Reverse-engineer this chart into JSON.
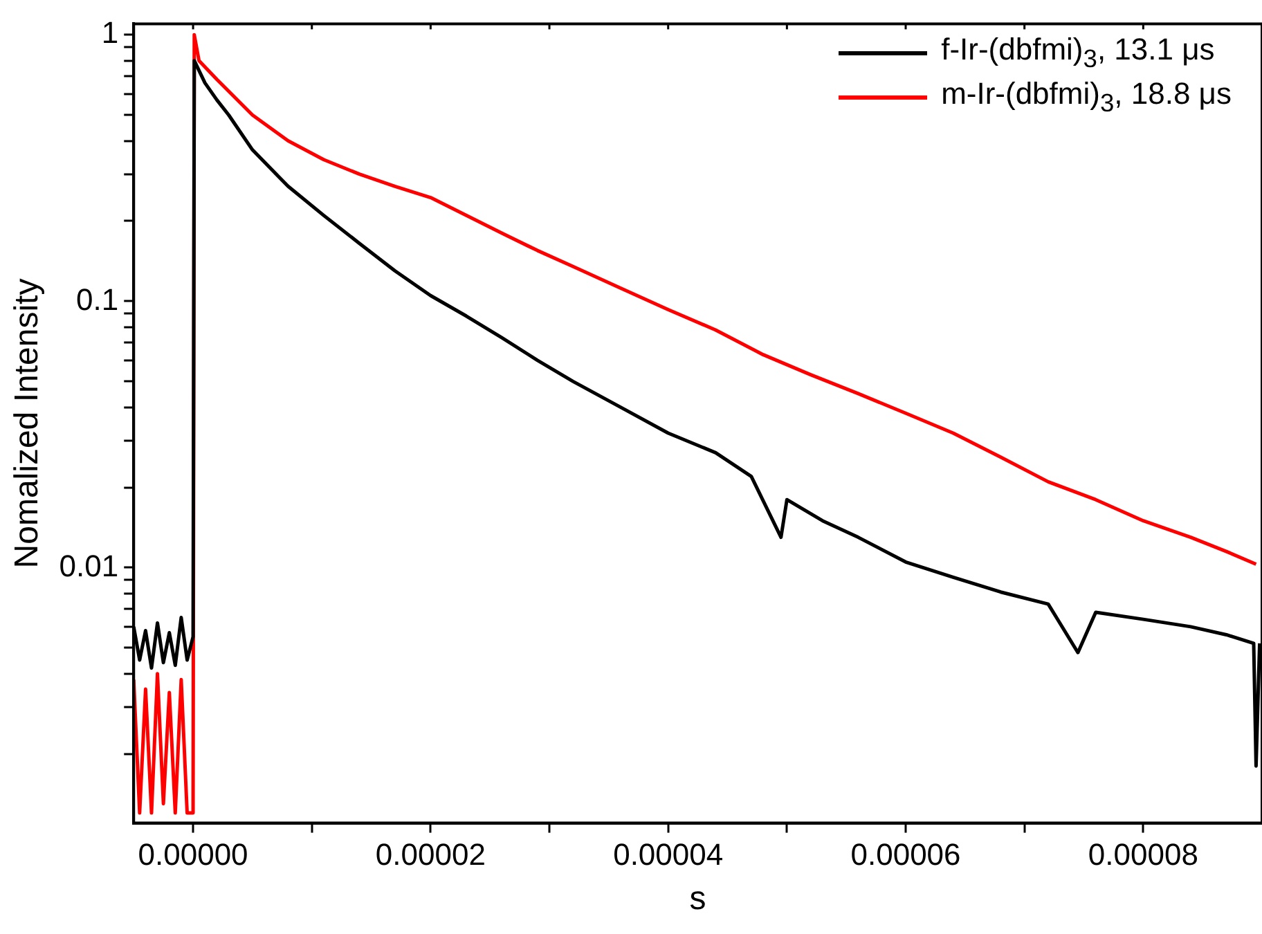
{
  "chart_data": {
    "type": "line",
    "xlabel": "s",
    "ylabel": "Nomalized Intensity",
    "log": "y",
    "marker": "none",
    "line_style": "solid",
    "grid": false,
    "legend": "top right",
    "xlim": [
      -5e-06,
      9e-05
    ],
    "ylim": [
      0.0011,
      1.1
    ],
    "xticks": [
      {
        "value": 0,
        "label": "0.00000"
      },
      {
        "value": 1e-05,
        "label": null
      },
      {
        "value": 2e-05,
        "label": "0.00002"
      },
      {
        "value": 3e-05,
        "label": null
      },
      {
        "value": 4e-05,
        "label": "0.00004"
      },
      {
        "value": 5e-05,
        "label": null
      },
      {
        "value": 6e-05,
        "label": "0.00006"
      },
      {
        "value": 7e-05,
        "label": null
      },
      {
        "value": 8e-05,
        "label": "0.00008"
      }
    ],
    "yticks": [
      {
        "value": 0.002,
        "label": null
      },
      {
        "value": 0.003,
        "label": null
      },
      {
        "value": 0.004,
        "label": null
      },
      {
        "value": 0.005,
        "label": null
      },
      {
        "value": 0.006,
        "label": null
      },
      {
        "value": 0.007,
        "label": null
      },
      {
        "value": 0.008,
        "label": null
      },
      {
        "value": 0.009,
        "label": null
      },
      0.01,
      {
        "value": 0.02,
        "label": null
      },
      {
        "value": 0.03,
        "label": null
      },
      {
        "value": 0.04,
        "label": null
      },
      {
        "value": 0.05,
        "label": null
      },
      {
        "value": 0.06,
        "label": null
      },
      {
        "value": 0.07,
        "label": null
      },
      {
        "value": 0.08,
        "label": null
      },
      {
        "value": 0.09,
        "label": null
      },
      0.1,
      {
        "value": 0.2,
        "label": null
      },
      {
        "value": 0.3,
        "label": null
      },
      {
        "value": 0.4,
        "label": null
      },
      {
        "value": 0.5,
        "label": null
      },
      {
        "value": 0.6,
        "label": null
      },
      {
        "value": 0.7,
        "label": null
      },
      {
        "value": 0.8,
        "label": null
      },
      {
        "value": 0.9,
        "label": null
      },
      1
    ],
    "series": [
      {
        "name": "f-Ir-(dbfmi)$_{3}$, 13.1 μs",
        "color": "#000000",
        "x": [
          -5e-06,
          -4.5e-06,
          -4e-06,
          -3.5e-06,
          -3e-06,
          -2.5e-06,
          -2e-06,
          -1.5e-06,
          -1e-06,
          -5e-07,
          0,
          1e-07,
          1e-06,
          2e-06,
          3e-06,
          5e-06,
          8e-06,
          1.1e-05,
          1.4e-05,
          1.7e-05,
          2e-05,
          2.3e-05,
          2.6e-05,
          2.9e-05,
          3.2e-05,
          3.6e-05,
          4e-05,
          4.4e-05,
          4.7e-05,
          4.95e-05,
          5e-05,
          5.3e-05,
          5.6e-05,
          6e-05,
          6.4e-05,
          6.8e-05,
          7.2e-05,
          7.45e-05,
          7.6e-05,
          8e-05,
          8.4e-05,
          8.7e-05,
          8.93e-05,
          8.95e-05,
          8.98e-05
        ],
        "values": [
          0.006,
          0.0045,
          0.0058,
          0.0042,
          0.0062,
          0.0044,
          0.0057,
          0.0043,
          0.0065,
          0.0045,
          0.0055,
          0.8,
          0.66,
          0.57,
          0.5,
          0.37,
          0.27,
          0.21,
          0.165,
          0.13,
          0.105,
          0.088,
          0.073,
          0.06,
          0.05,
          0.04,
          0.032,
          0.027,
          0.022,
          0.013,
          0.018,
          0.015,
          0.013,
          0.0105,
          0.0092,
          0.0081,
          0.0073,
          0.0048,
          0.0068,
          0.0064,
          0.006,
          0.0056,
          0.0052,
          0.0018,
          0.0052
        ]
      },
      {
        "name": "m-Ir-(dbfmi)$_{3}$, 18.8 μs",
        "color": "#ff0000",
        "x": [
          -5e-06,
          -4.5e-06,
          -4e-06,
          -3.5e-06,
          -3e-06,
          -2.5e-06,
          -2e-06,
          -1.5e-06,
          -1e-06,
          -5e-07,
          0,
          1e-07,
          5e-07,
          2e-06,
          5e-06,
          8e-06,
          1.1e-05,
          1.4e-05,
          1.7e-05,
          2e-05,
          2.3e-05,
          2.6e-05,
          2.9e-05,
          3.2e-05,
          3.6e-05,
          4e-05,
          4.4e-05,
          4.8e-05,
          5.2e-05,
          5.6e-05,
          6e-05,
          6.4e-05,
          6.8e-05,
          7.2e-05,
          7.6e-05,
          8e-05,
          8.4e-05,
          8.7e-05,
          8.95e-05
        ],
        "values": [
          0.0038,
          0.0012,
          0.0035,
          0.0012,
          0.004,
          0.0013,
          0.0034,
          0.0012,
          0.0038,
          0.0012,
          0.0012,
          1.0,
          0.8,
          0.68,
          0.5,
          0.4,
          0.34,
          0.3,
          0.27,
          0.245,
          0.21,
          0.18,
          0.155,
          0.135,
          0.112,
          0.093,
          0.078,
          0.063,
          0.053,
          0.045,
          0.038,
          0.032,
          0.026,
          0.021,
          0.018,
          0.015,
          0.013,
          0.0115,
          0.0103
        ]
      }
    ]
  }
}
